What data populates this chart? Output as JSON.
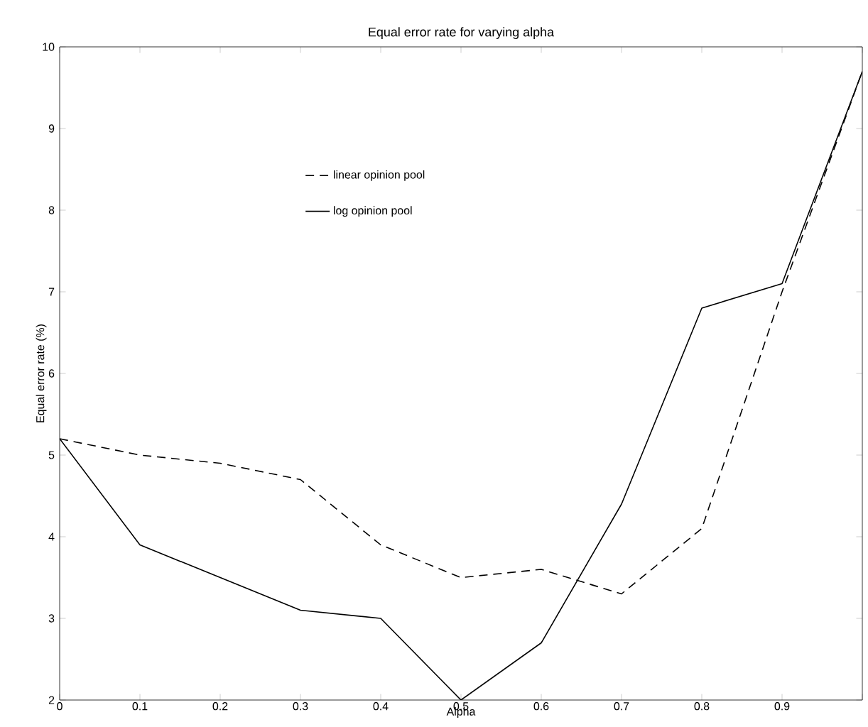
{
  "chart_data": {
    "type": "line",
    "title": "Equal error rate for varying alpha",
    "xlabel": "Alpha",
    "ylabel": "Equal error rate (%)",
    "x": [
      0,
      0.1,
      0.2,
      0.3,
      0.4,
      0.5,
      0.6,
      0.7,
      0.8,
      0.9,
      1.0
    ],
    "series": [
      {
        "name": "linear opinion pool",
        "color": "#000000",
        "line_style": "dashed",
        "values": [
          5.2,
          5.0,
          4.9,
          4.7,
          3.9,
          3.5,
          3.6,
          3.3,
          4.1,
          7.0,
          9.7
        ]
      },
      {
        "name": "log opinion pool",
        "color": "#000000",
        "line_style": "solid",
        "values": [
          5.2,
          3.9,
          3.5,
          3.1,
          3.0,
          2.0,
          2.7,
          4.4,
          6.8,
          7.1,
          9.7
        ]
      }
    ],
    "xlim": [
      0,
      1
    ],
    "ylim": [
      2,
      10
    ],
    "xticks": [
      0,
      0.1,
      0.2,
      0.3,
      0.4,
      0.5,
      0.6,
      0.7,
      0.8,
      0.9,
      {
        "value": 1,
        "label": null
      }
    ],
    "yticks": [
      2,
      3,
      4,
      5,
      6,
      7,
      8,
      9,
      10
    ],
    "legend": "top",
    "grid": false,
    "marker": "none"
  }
}
